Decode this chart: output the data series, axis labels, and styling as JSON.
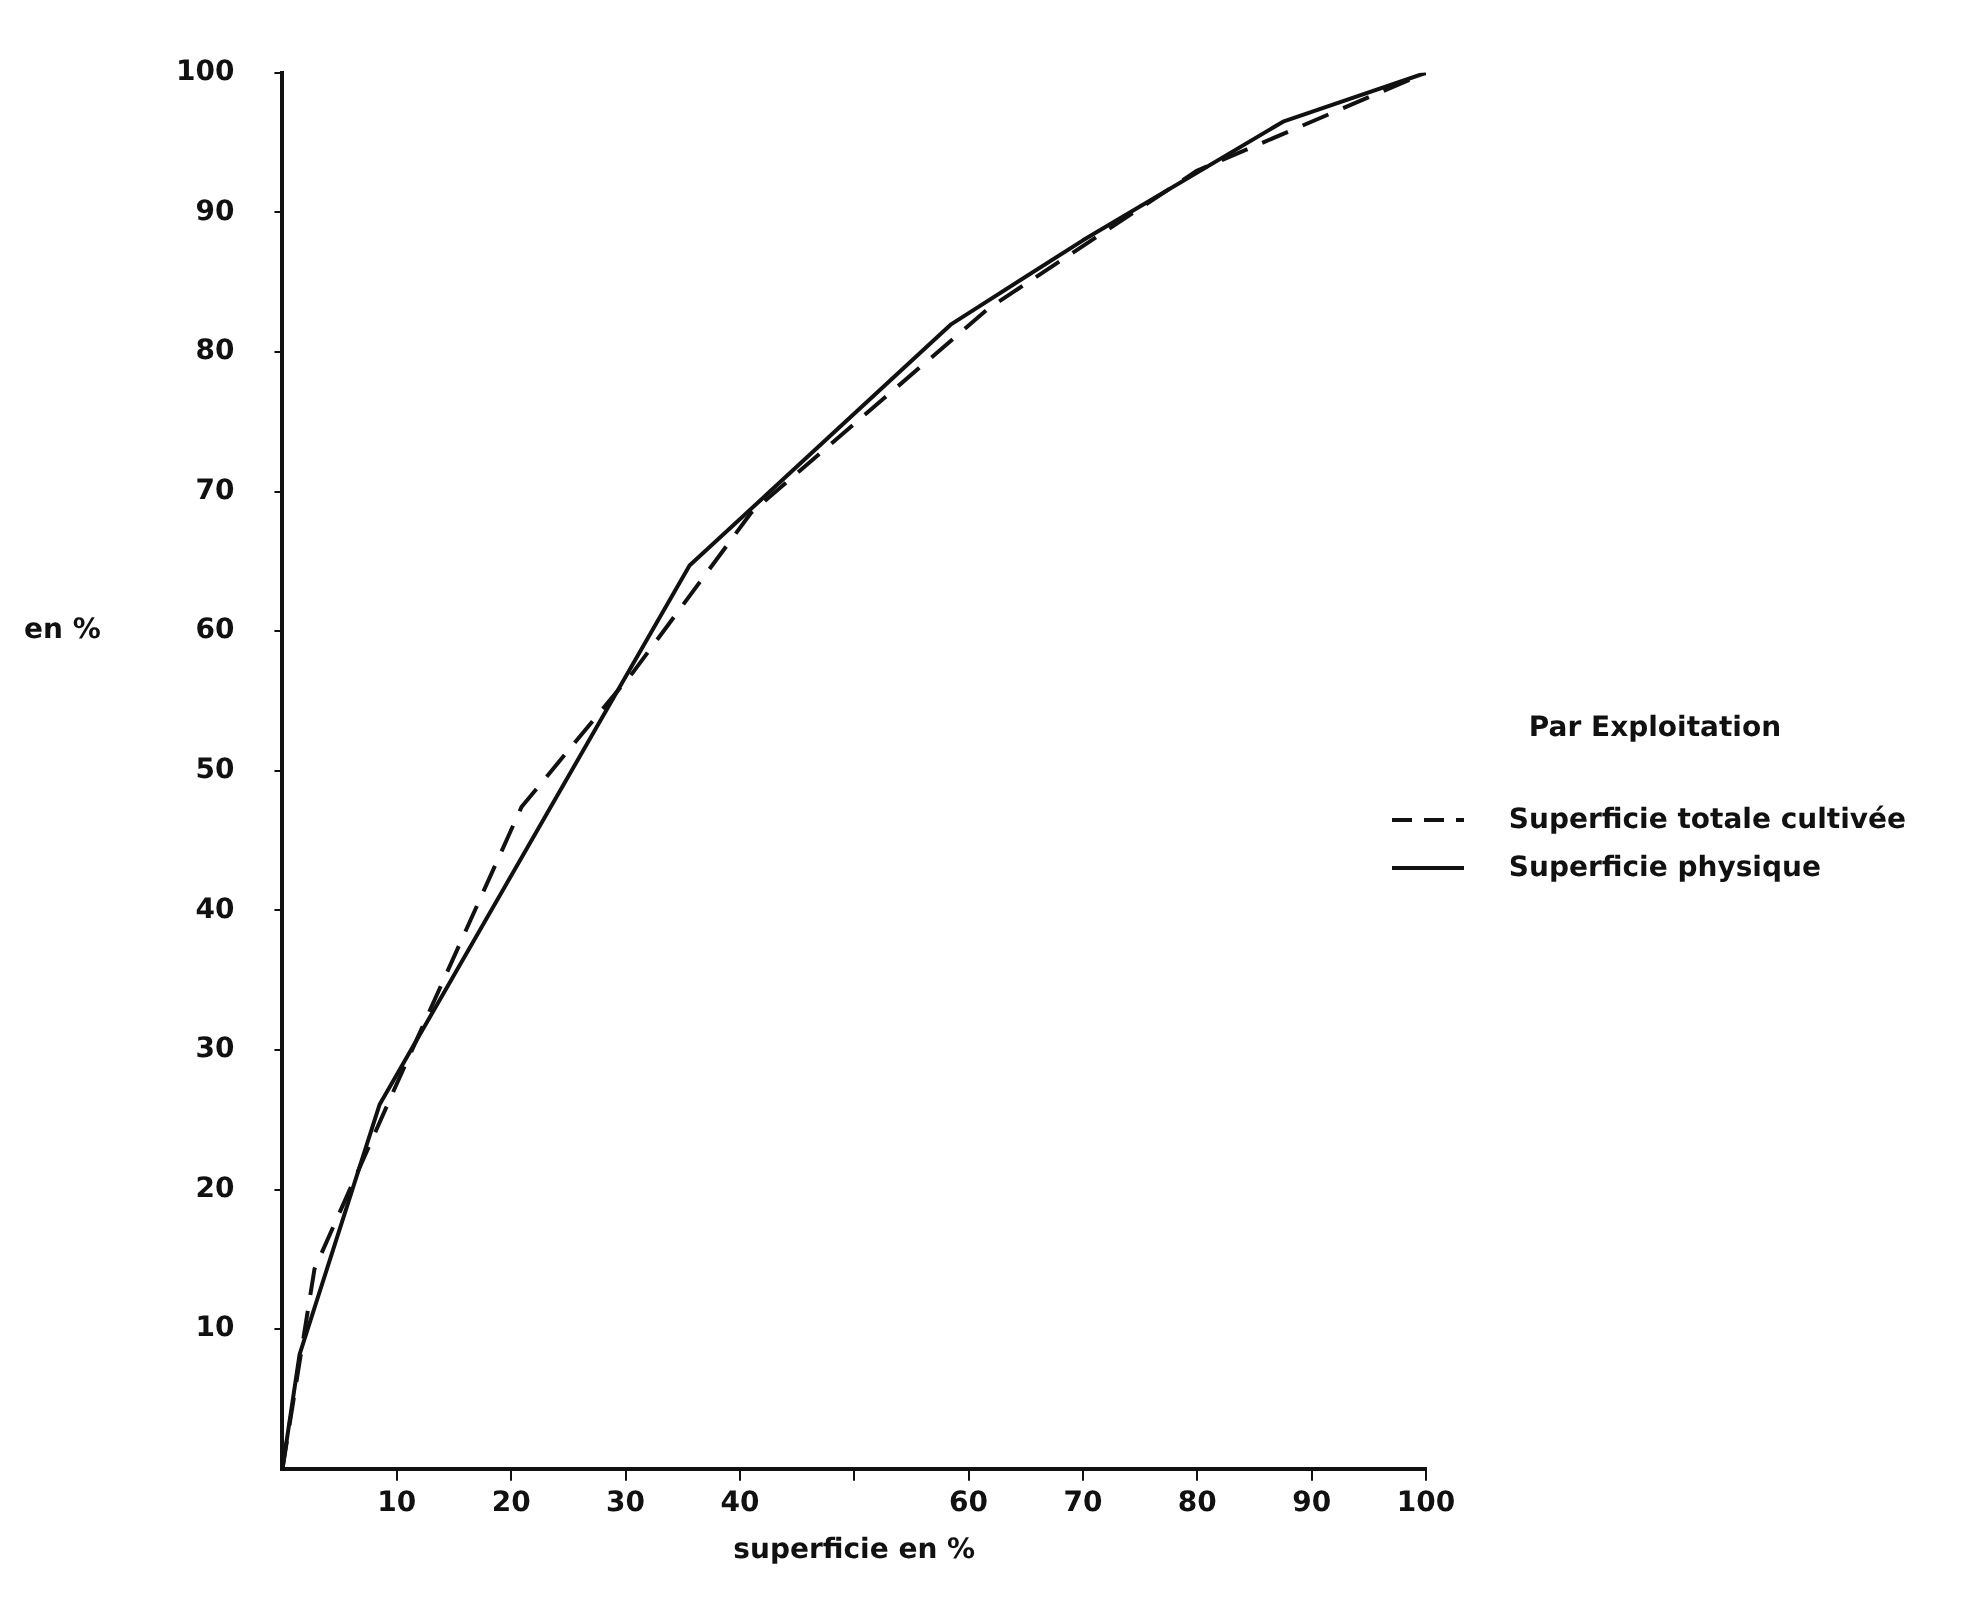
{
  "chart_data": {
    "type": "line",
    "ylabel": "en %",
    "xlabel": "superficie en %",
    "legend_title": "Par Exploitation",
    "legend": "right",
    "grid": false,
    "marker": "none",
    "xlim": [
      0,
      100
    ],
    "ylim": [
      0,
      100
    ],
    "xticks": [
      10,
      20,
      30,
      40,
      {
        "value": 50,
        "label": null
      },
      60,
      70,
      80,
      90,
      100
    ],
    "yticks": [
      10,
      20,
      30,
      40,
      50,
      60,
      70,
      80,
      90,
      100
    ],
    "series": [
      {
        "name": "Superficie totale cultivée",
        "color": "#111111",
        "line_style": "dashed",
        "x": [
          0,
          2.8,
          9.9,
          20.9,
          30.7,
          41,
          61.7,
          80,
          100
        ],
        "values": [
          0,
          14.3,
          27.4,
          47.4,
          57.1,
          68.5,
          83.1,
          93,
          100
        ]
      },
      {
        "name": "Superficie physique",
        "color": "#111111",
        "line_style": "solid",
        "x": [
          0,
          1.5,
          8.5,
          35.6,
          58.5,
          70,
          87.5,
          100
        ],
        "values": [
          0,
          8.2,
          26.1,
          64.7,
          82,
          88,
          96.5,
          100
        ]
      }
    ]
  }
}
